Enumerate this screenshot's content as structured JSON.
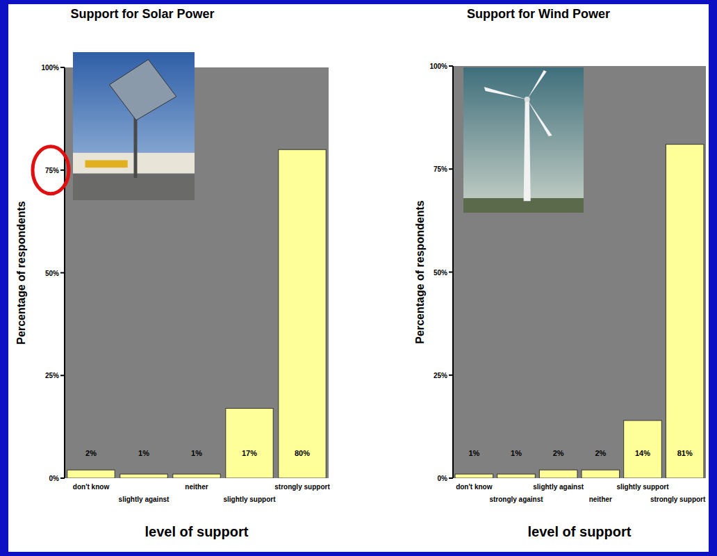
{
  "chart_data": [
    {
      "type": "bar",
      "title": "Support for Solar Power",
      "x_label": "level of support",
      "y_label": "Percentage of respondents",
      "categories": [
        "don't know",
        "slightly against",
        "neither",
        "slightly support",
        "strongly support"
      ],
      "values": [
        2,
        1,
        1,
        17,
        80
      ],
      "value_labels": [
        "2%",
        "1%",
        "1%",
        "17%",
        "80%"
      ],
      "color": "#ffff99",
      "data_labels": true,
      "ylim": [
        0,
        100
      ],
      "yticks": [
        {
          "value": 0,
          "label": "0%"
        },
        {
          "value": 25,
          "label": "25%"
        },
        {
          "value": 50,
          "label": "50%"
        },
        {
          "value": 75,
          "label": "75%"
        },
        {
          "value": 100,
          "label": "100%"
        }
      ]
    },
    {
      "type": "bar",
      "title": "Support for Wind Power",
      "x_label": "level of support",
      "y_label": "Percentage of respondents",
      "categories": [
        "don't know",
        "strongly against",
        "slightly against",
        "neither",
        "slightly support",
        "strongly support"
      ],
      "values": [
        1,
        1,
        2,
        2,
        14,
        81
      ],
      "value_labels": [
        "1%",
        "1%",
        "2%",
        "2%",
        "14%",
        "81%"
      ],
      "color": "#ffff99",
      "data_labels": true,
      "ylim": [
        0,
        100
      ],
      "yticks": [
        {
          "value": 0,
          "label": "0%"
        },
        {
          "value": 25,
          "label": "25%"
        },
        {
          "value": 50,
          "label": "50%"
        },
        {
          "value": 75,
          "label": "75%"
        },
        {
          "value": 100,
          "label": "100%"
        }
      ]
    }
  ]
}
